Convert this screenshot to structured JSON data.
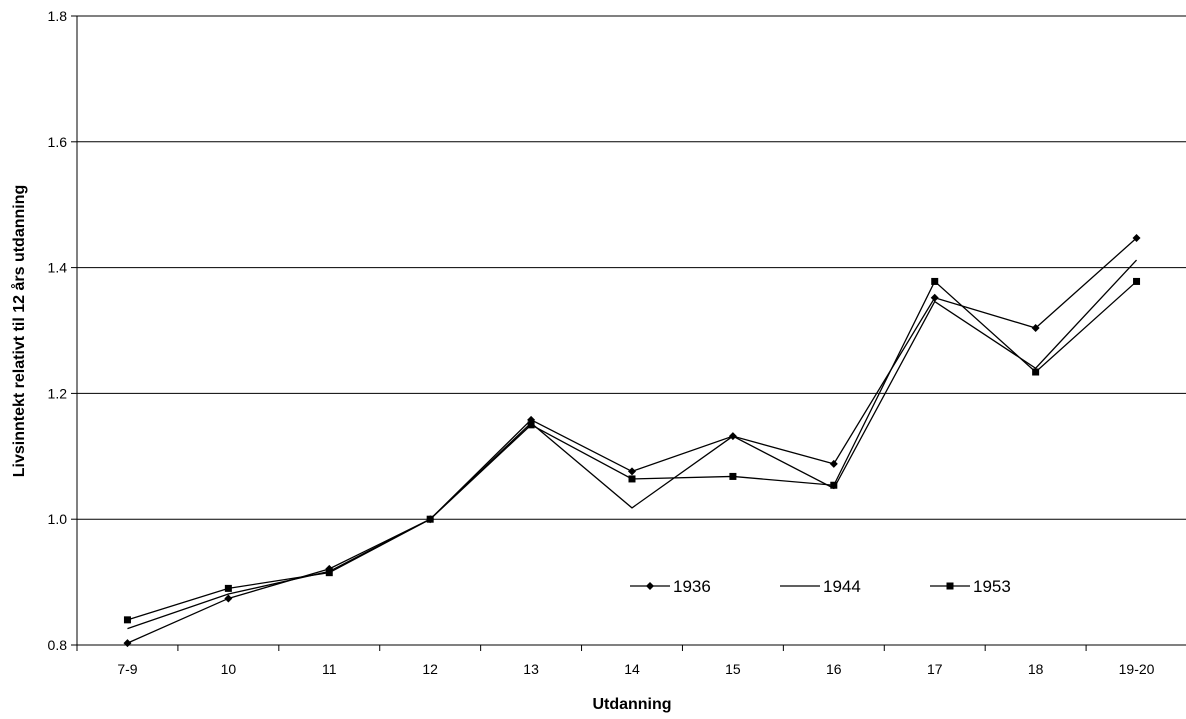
{
  "chart_data": {
    "type": "line",
    "xlabel": "Utdanning",
    "ylabel": "Livsinntekt relativt til 12 års utdanning",
    "categories": [
      "7-9",
      "10",
      "11",
      "12",
      "13",
      "14",
      "15",
      "16",
      "17",
      "18",
      "19-20"
    ],
    "ylim": [
      0.8,
      1.8
    ],
    "yticks": [
      "0.8",
      "1.0",
      "1.2",
      "1.4",
      "1.6",
      "1.8"
    ],
    "grid": true,
    "legend_position": "bottom-center-inside",
    "series": [
      {
        "name": "1936",
        "marker": "diamond",
        "values": [
          0.803,
          0.874,
          0.921,
          1.0,
          1.158,
          1.076,
          1.132,
          1.088,
          1.352,
          1.304,
          1.447
        ]
      },
      {
        "name": "1944",
        "marker": "none",
        "values": [
          0.826,
          0.881,
          0.917,
          1.0,
          1.153,
          1.018,
          1.132,
          1.049,
          1.346,
          1.24,
          1.412
        ]
      },
      {
        "name": "1953",
        "marker": "square",
        "values": [
          0.84,
          0.89,
          0.915,
          1.0,
          1.15,
          1.064,
          1.068,
          1.054,
          1.378,
          1.234,
          1.378
        ]
      }
    ],
    "colors": {
      "line": "#000000",
      "grid": "#000000",
      "background": "#ffffff"
    }
  }
}
